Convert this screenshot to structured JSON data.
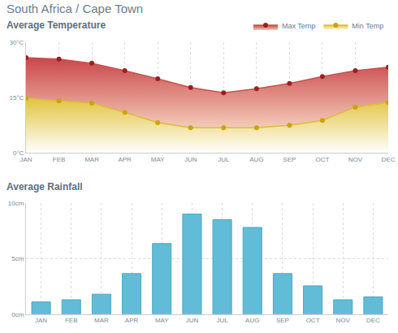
{
  "header": {
    "title": "South Africa / Cape Town"
  },
  "chart_data": [
    {
      "type": "area",
      "title": "Average Temperature",
      "categories": [
        "JAN",
        "FEB",
        "MAR",
        "APR",
        "MAY",
        "JUN",
        "JUL",
        "AUG",
        "SEP",
        "OCT",
        "NOV",
        "DEC"
      ],
      "series": [
        {
          "name": "Max Temp",
          "color": "#9b1f22",
          "values": [
            25.8,
            25.4,
            24.3,
            22.3,
            20.1,
            17.7,
            16.3,
            17.4,
            18.8,
            20.7,
            22.3,
            23.2
          ]
        },
        {
          "name": "Min Temp",
          "color": "#c9a400",
          "values": [
            14.8,
            14.1,
            13.5,
            11.0,
            8.2,
            6.8,
            6.8,
            6.8,
            7.5,
            8.8,
            12.4,
            13.7
          ]
        }
      ],
      "ylim": [
        0,
        30
      ],
      "yticks": [
        {
          "value": 0,
          "label": "0°C"
        },
        {
          "value": 15,
          "label": "15°C"
        },
        {
          "value": 30,
          "label": "30°C"
        }
      ],
      "grid": true,
      "legend": "top right"
    },
    {
      "type": "bar",
      "title": "Average Rainfall",
      "categories": [
        "JAN",
        "FEB",
        "MAR",
        "APR",
        "MAY",
        "JUN",
        "JUL",
        "AUG",
        "SEP",
        "OCT",
        "NOV",
        "DEC"
      ],
      "values": [
        1.1,
        1.3,
        1.8,
        3.65,
        6.35,
        9.0,
        8.5,
        7.8,
        3.65,
        2.55,
        1.3,
        1.55
      ],
      "color": "#62bcd7",
      "ylim": [
        0,
        10
      ],
      "yticks": [
        {
          "value": 0,
          "label": "0cm"
        },
        {
          "value": 5,
          "label": "5cm"
        },
        {
          "value": 10,
          "label": "10cm"
        }
      ],
      "grid": true
    }
  ]
}
